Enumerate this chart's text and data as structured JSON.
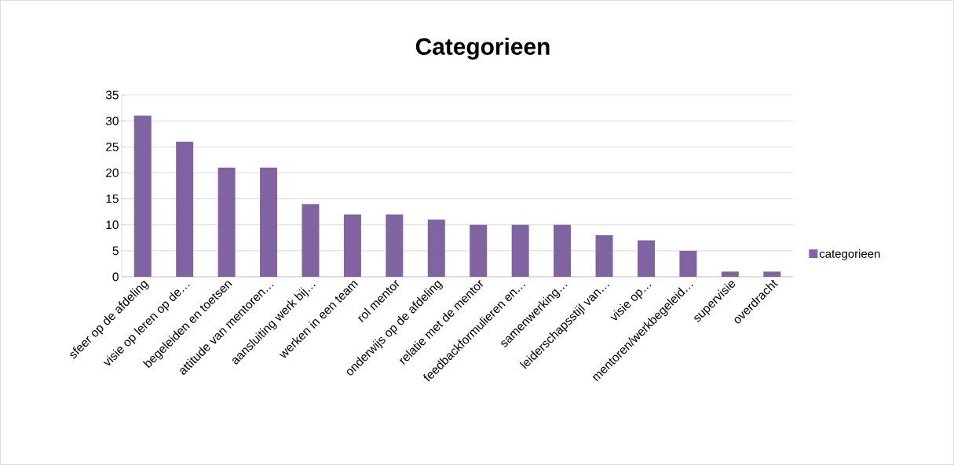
{
  "chart_data": {
    "type": "bar",
    "title": "Categorieen",
    "categories": [
      "sfeer op de afdeling",
      "visie op leren op de…",
      "begeleiden en toetsen",
      "attitude van mentoren…",
      "aansluiting werk bij…",
      "werken in een team",
      "rol mentor",
      "onderwijs op de afdeling",
      "relatie met de mentor",
      "feedbackformulieren en…",
      "samenwerking…",
      "leiderschapsstijl van…",
      "visie op…",
      "mentoren/werkbegeleid…",
      "supervisie",
      "overdracht"
    ],
    "series": [
      {
        "name": "categorieen",
        "color": "#8064a2",
        "values": [
          31,
          26,
          21,
          21,
          14,
          12,
          12,
          11,
          10,
          10,
          10,
          8,
          7,
          5,
          1,
          1
        ]
      }
    ],
    "ylim": [
      0,
      35
    ],
    "yticks": [
      0,
      5,
      10,
      15,
      20,
      25,
      30,
      35
    ],
    "grid": "y",
    "legend": "right"
  }
}
